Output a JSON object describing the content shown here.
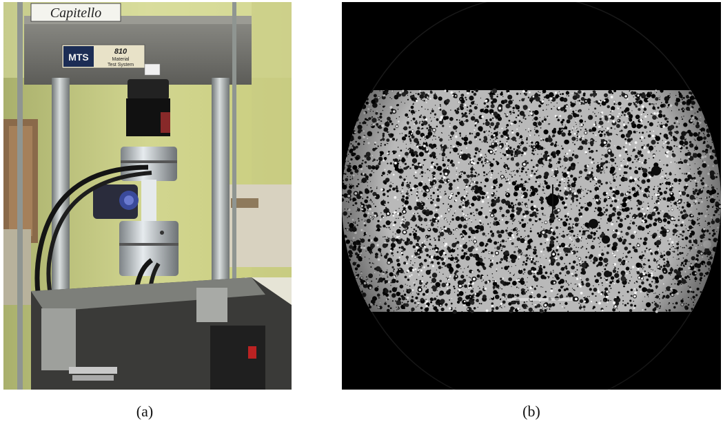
{
  "figure": {
    "panel_a": {
      "caption": "(a)",
      "sign_text": "Capitello",
      "plate_brand": "MTS",
      "plate_model": "810",
      "plate_line1": "Material",
      "plate_line2": "Test System"
    },
    "panel_b": {
      "caption": "(b)"
    }
  }
}
